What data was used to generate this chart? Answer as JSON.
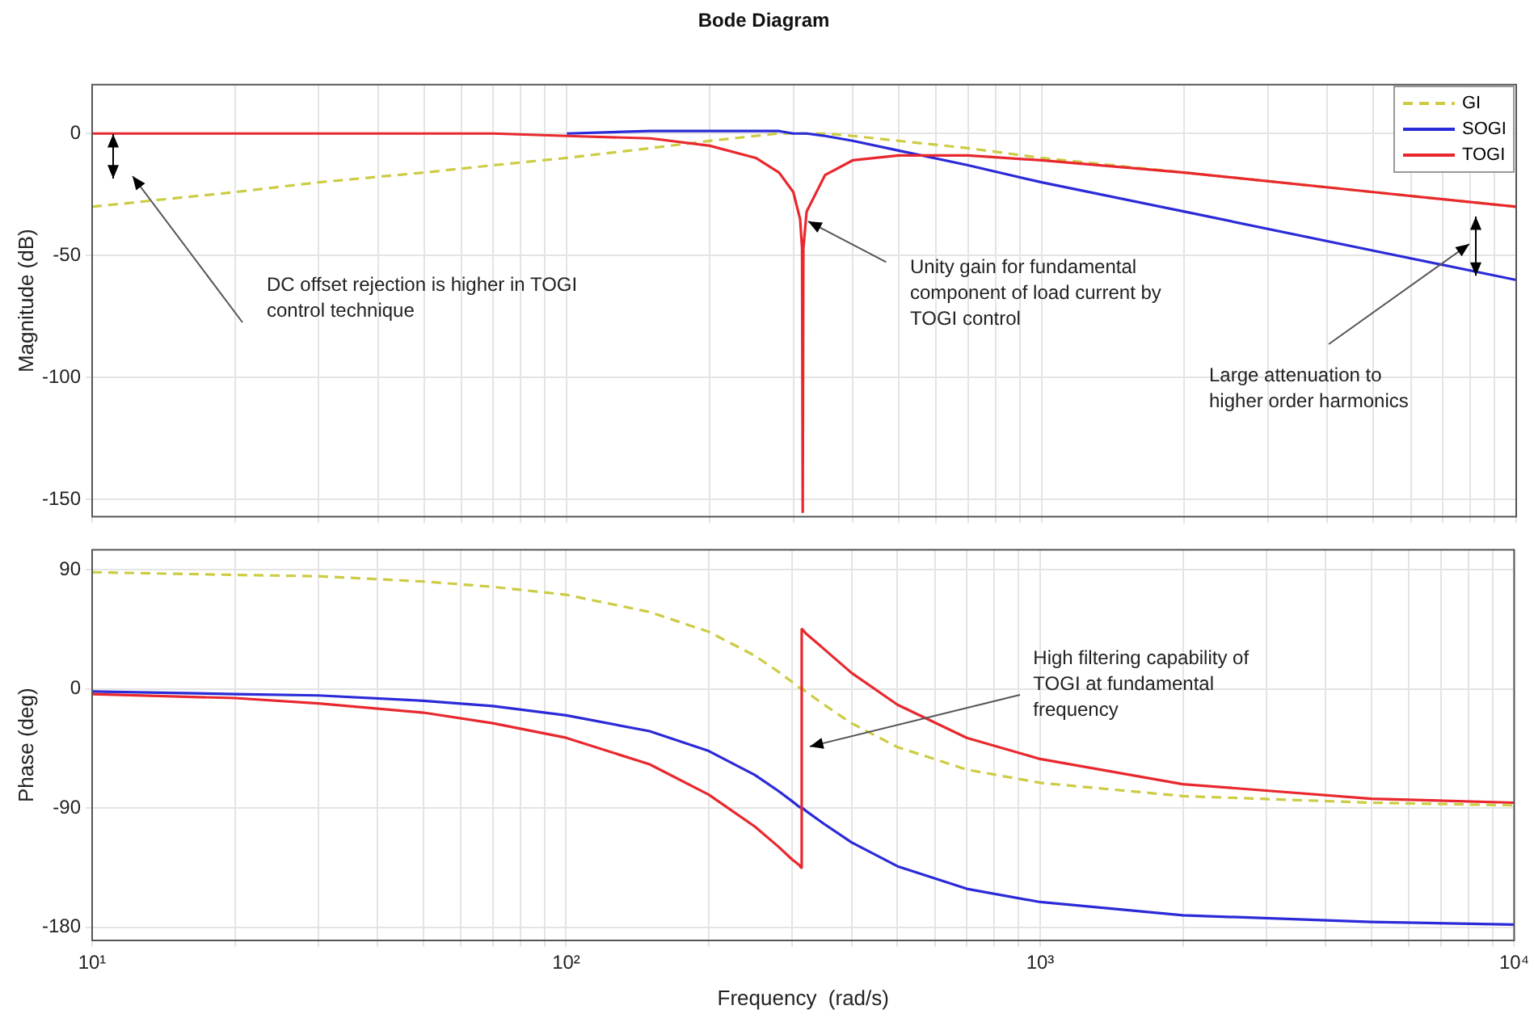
{
  "chart_data": [
    {
      "type": "line",
      "title": "Bode Diagram",
      "ylabel": "Magnitude (dB)",
      "log": "x",
      "grid": true,
      "legend": "top right",
      "tick_labels": "y",
      "x": [
        10,
        20,
        30,
        50,
        70,
        100,
        150,
        200,
        250,
        280,
        300,
        310,
        313,
        314,
        315,
        320,
        350,
        400,
        500,
        700,
        1000,
        2000,
        5000,
        10000
      ],
      "xlim": [
        10,
        10000
      ],
      "xticks": [
        10,
        20,
        30,
        40,
        50,
        60,
        70,
        80,
        90,
        100,
        200,
        300,
        400,
        500,
        600,
        700,
        800,
        900,
        1000,
        2000,
        3000,
        4000,
        5000,
        6000,
        7000,
        8000,
        9000,
        10000
      ],
      "ylim": [
        -157,
        20
      ],
      "yticks": [
        -150,
        -100,
        -50,
        0
      ],
      "series": [
        {
          "name": "GI",
          "color": "#cccc44",
          "line_style": "dashed",
          "values": [
            -30,
            -24,
            -20,
            -16,
            -13,
            -10,
            -6,
            -3,
            -1,
            0,
            0,
            0,
            0,
            0,
            0,
            0,
            0,
            -1,
            -3,
            -6,
            -10,
            -16,
            -24,
            -30
          ]
        },
        {
          "name": "SOGI",
          "color": "#2a2ad8",
          "values": [
            null,
            null,
            null,
            null,
            null,
            0,
            1,
            1,
            1,
            1,
            0,
            0,
            0,
            0,
            0,
            0,
            -1,
            -3,
            -7,
            -13,
            -20,
            -32,
            -48,
            -60
          ]
        },
        {
          "name": "TOGI",
          "color": "#e8282e",
          "values": [
            0,
            0,
            0,
            0,
            0,
            -1,
            -2,
            -5,
            -10,
            -16,
            -24,
            -35,
            -47,
            -155,
            -47,
            -32,
            -17,
            -11,
            -9,
            -9,
            -11,
            -16,
            -24,
            -30
          ]
        }
      ],
      "annotations": [
        "DC offset rejection is higher in TOGI control technique",
        {
          "text": "Unity gain for fundamental component of load current by TOGI control",
          "x": 322,
          "y": -36
        },
        "Large attenuation to higher order harmonics"
      ]
    },
    {
      "type": "line",
      "xlabel": "Frequency  (rad/s)",
      "ylabel": "Phase (deg)",
      "log": "x",
      "grid": true,
      "x": [
        10,
        20,
        30,
        50,
        70,
        100,
        150,
        200,
        250,
        280,
        300,
        310,
        313,
        314,
        315,
        320,
        350,
        400,
        500,
        700,
        1000,
        2000,
        5000,
        10000
      ],
      "xlim": [
        10,
        10000
      ],
      "xticks": [
        {
          "value": 10,
          "label": "10¹"
        },
        {
          "value": 20,
          "label": null
        },
        {
          "value": 30,
          "label": null
        },
        {
          "value": 40,
          "label": null
        },
        {
          "value": 50,
          "label": null
        },
        {
          "value": 60,
          "label": null
        },
        {
          "value": 70,
          "label": null
        },
        {
          "value": 80,
          "label": null
        },
        {
          "value": 90,
          "label": null
        },
        {
          "value": 100,
          "label": "10²"
        },
        {
          "value": 200,
          "label": null
        },
        {
          "value": 300,
          "label": null
        },
        {
          "value": 400,
          "label": null
        },
        {
          "value": 500,
          "label": null
        },
        {
          "value": 600,
          "label": null
        },
        {
          "value": 700,
          "label": null
        },
        {
          "value": 800,
          "label": null
        },
        {
          "value": 900,
          "label": null
        },
        {
          "value": 1000,
          "label": "10³"
        },
        {
          "value": 2000,
          "label": null
        },
        {
          "value": 3000,
          "label": null
        },
        {
          "value": 4000,
          "label": null
        },
        {
          "value": 5000,
          "label": null
        },
        {
          "value": 6000,
          "label": null
        },
        {
          "value": 7000,
          "label": null
        },
        {
          "value": 8000,
          "label": null
        },
        {
          "value": 9000,
          "label": null
        },
        {
          "value": 10000,
          "label": "10⁴"
        }
      ],
      "ylim": [
        -190,
        105
      ],
      "yticks": [
        -180,
        -90,
        0,
        90
      ],
      "series": [
        {
          "color": "#cccc44",
          "line_style": "dashed",
          "values": [
            88,
            86,
            85,
            81,
            77,
            71,
            58,
            43,
            25,
            13,
            5,
            1,
            0,
            0,
            0,
            -2,
            -12,
            -26,
            -44,
            -61,
            -71,
            -81,
            -86,
            -88
          ]
        },
        {
          "color": "#2a2ad8",
          "values": [
            -2,
            -4,
            -5,
            -9,
            -13,
            -20,
            -32,
            -47,
            -65,
            -77,
            -85,
            -89,
            -90,
            -90,
            -90,
            -92,
            -102,
            -116,
            -134,
            -151,
            -161,
            -171,
            -176,
            -178
          ]
        },
        {
          "color": "#e8282e",
          "values": [
            -4,
            -7,
            -11,
            -18,
            -26,
            -37,
            -57,
            -80,
            -104,
            -119,
            -129,
            -133,
            -135,
            45,
            45,
            42,
            30,
            12,
            -12,
            -37,
            -53,
            -72,
            -83,
            -86
          ]
        }
      ],
      "annotations": [
        {
          "text": "High filtering capability of TOGI at fundamental frequency",
          "x": 327,
          "y": -44
        }
      ]
    }
  ]
}
